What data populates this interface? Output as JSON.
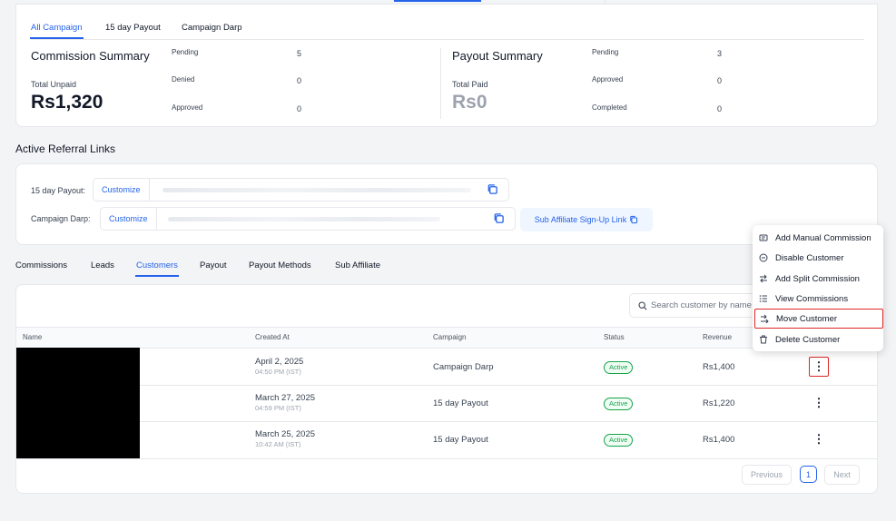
{
  "campaign_tabs": [
    "All Campaign",
    "15 day Payout",
    "Campaign Darp"
  ],
  "commission_summary": {
    "title": "Commission Summary",
    "total_label": "Total Unpaid",
    "total_value": "Rs1,320",
    "stats": [
      {
        "label": "Pending",
        "value": "5"
      },
      {
        "label": "Denied",
        "value": "0"
      },
      {
        "label": "Approved",
        "value": "0"
      }
    ]
  },
  "payout_summary": {
    "title": "Payout Summary",
    "total_label": "Total Paid",
    "total_value": "Rs0",
    "stats": [
      {
        "label": "Pending",
        "value": "3"
      },
      {
        "label": "Approved",
        "value": "0"
      },
      {
        "label": "Completed",
        "value": "0"
      }
    ]
  },
  "referral": {
    "title": "Active Referral Links",
    "rows": [
      {
        "label": "15 day Payout:",
        "button": "Customize"
      },
      {
        "label": "Campaign Darp:",
        "button": "Customize"
      }
    ],
    "sub_affiliate_link": "Sub Affiliate Sign-Up Link"
  },
  "section_tabs": [
    "Commissions",
    "Leads",
    "Customers",
    "Payout",
    "Payout Methods",
    "Sub Affiliate"
  ],
  "search": {
    "placeholder": "Search customer by name"
  },
  "table": {
    "headers": [
      "Name",
      "Created At",
      "Campaign",
      "Status",
      "Revenue"
    ],
    "rows": [
      {
        "date": "April 2, 2025",
        "time": "04:50 PM (IST)",
        "campaign": "Campaign Darp",
        "status": "Active",
        "revenue": "Rs1,400"
      },
      {
        "date": "March 27, 2025",
        "time": "04:59 PM (IST)",
        "campaign": "15 day Payout",
        "status": "Active",
        "revenue": "Rs1,220"
      },
      {
        "date": "March 25, 2025",
        "time": "10:42 AM (IST)",
        "campaign": "15 day Payout",
        "status": "Active",
        "revenue": "Rs1,400"
      }
    ]
  },
  "pagination": {
    "previous": "Previous",
    "page": "1",
    "next": "Next"
  },
  "context_menu": [
    {
      "label": "Add Manual Commission",
      "icon": "receipt-icon"
    },
    {
      "label": "Disable Customer",
      "icon": "minus-circle-icon"
    },
    {
      "label": "Add Split Commission",
      "icon": "split-arrows-icon"
    },
    {
      "label": "View Commissions",
      "icon": "list-icon"
    },
    {
      "label": "Move Customer",
      "icon": "move-arrow-icon"
    },
    {
      "label": "Delete Customer",
      "icon": "trash-icon"
    }
  ],
  "colors": {
    "accent": "#2563eb",
    "active_green": "#16a34a",
    "highlight_red": "#dc2626"
  }
}
